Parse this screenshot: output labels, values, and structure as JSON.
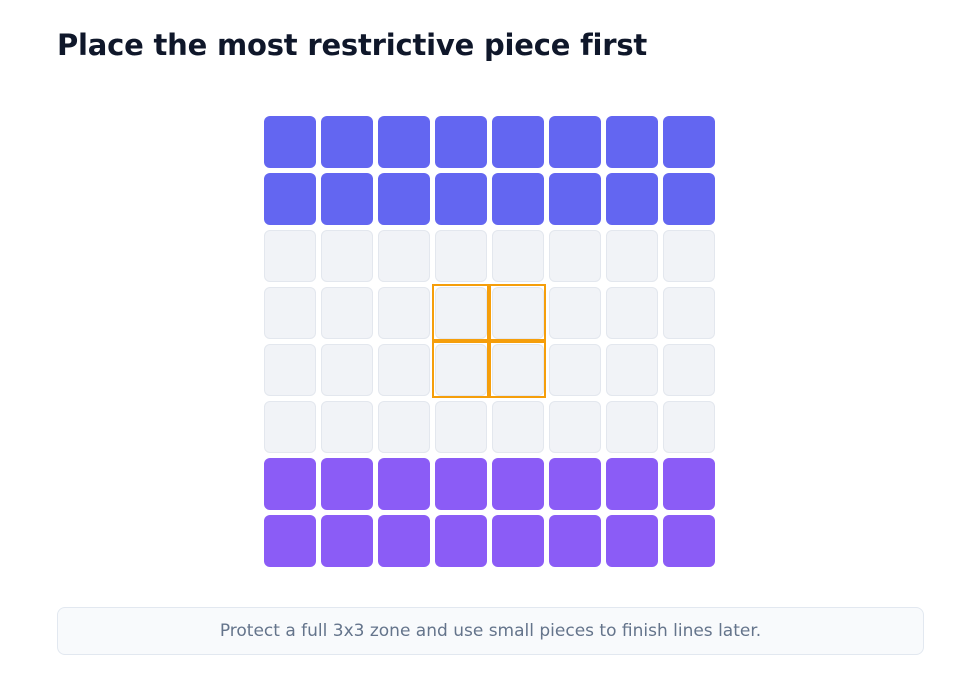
{
  "header": {
    "title": "Place the most restrictive piece first"
  },
  "tip": {
    "text": "Protect a full 3x3 zone and use small pieces to finish lines later."
  }
}
